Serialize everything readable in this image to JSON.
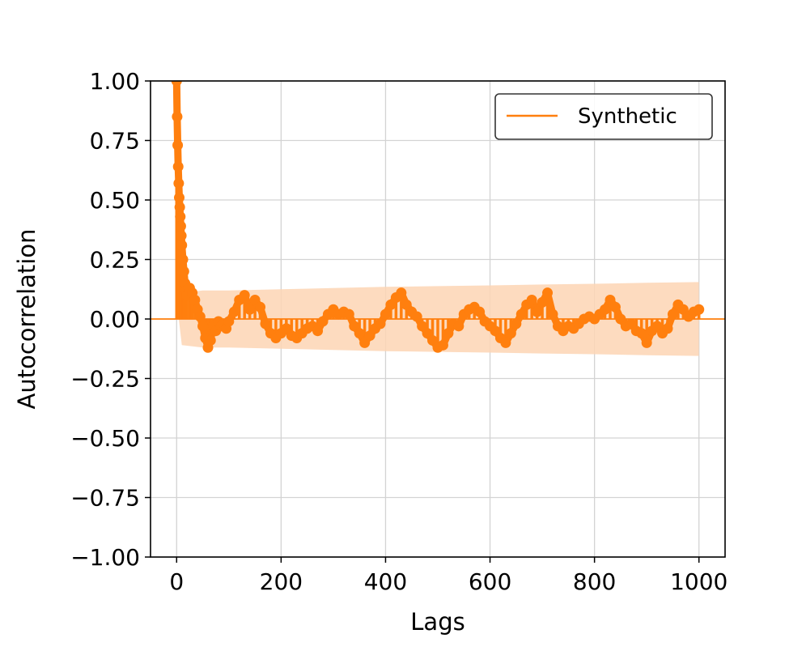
{
  "chart_data": {
    "type": "line",
    "title": "",
    "xlabel": "Lags",
    "ylabel": "Autocorrelation",
    "xlim": [
      -50,
      1050
    ],
    "ylim": [
      -1.0,
      1.0
    ],
    "x_ticks": [
      0,
      200,
      400,
      600,
      800,
      1000
    ],
    "x_tick_labels": [
      "0",
      "200",
      "400",
      "600",
      "800",
      "1000"
    ],
    "y_ticks": [
      1.0,
      0.75,
      0.5,
      0.25,
      0.0,
      -0.25,
      -0.5,
      -0.75,
      -1.0
    ],
    "y_tick_labels": [
      "1.00",
      "0.75",
      "0.50",
      "0.25",
      "0.00",
      "−0.25",
      "−0.50",
      "−0.75",
      "−1.00"
    ],
    "grid": true,
    "legend_position": "top-right",
    "series": [
      {
        "name": "Synthetic",
        "color": "#ff7f0e",
        "marker": "circle",
        "x": [
          0,
          1,
          2,
          3,
          4,
          5,
          6,
          7,
          8,
          9,
          10,
          12,
          14,
          16,
          18,
          20,
          25,
          30,
          35,
          40,
          45,
          50,
          55,
          60,
          65,
          70,
          75,
          80,
          85,
          90,
          95,
          100,
          110,
          120,
          130,
          140,
          150,
          160,
          170,
          180,
          190,
          200,
          210,
          220,
          230,
          240,
          250,
          260,
          270,
          280,
          290,
          300,
          310,
          320,
          330,
          340,
          350,
          360,
          370,
          380,
          390,
          400,
          410,
          420,
          430,
          440,
          450,
          460,
          470,
          480,
          490,
          500,
          510,
          520,
          530,
          540,
          550,
          560,
          570,
          580,
          590,
          600,
          610,
          620,
          630,
          640,
          650,
          660,
          670,
          680,
          690,
          700,
          710,
          720,
          730,
          740,
          750,
          760,
          770,
          780,
          790,
          800,
          810,
          820,
          830,
          840,
          850,
          860,
          870,
          880,
          890,
          900,
          910,
          920,
          930,
          940,
          950,
          960,
          970,
          980,
          990,
          1000
        ],
        "values": [
          1.0,
          0.85,
          0.73,
          0.64,
          0.57,
          0.51,
          0.47,
          0.43,
          0.39,
          0.35,
          0.31,
          0.25,
          0.2,
          0.15,
          0.12,
          0.1,
          0.13,
          0.11,
          0.08,
          0.04,
          0.01,
          -0.03,
          -0.08,
          -0.12,
          -0.09,
          -0.03,
          -0.05,
          -0.01,
          -0.03,
          -0.02,
          -0.04,
          -0.01,
          0.03,
          0.08,
          0.1,
          0.04,
          0.08,
          0.05,
          -0.02,
          -0.06,
          -0.08,
          -0.06,
          -0.04,
          -0.07,
          -0.08,
          -0.06,
          -0.04,
          -0.03,
          -0.05,
          -0.01,
          0.02,
          0.04,
          0.02,
          0.03,
          0.02,
          -0.03,
          -0.06,
          -0.1,
          -0.07,
          -0.04,
          -0.02,
          0.02,
          0.06,
          0.09,
          0.11,
          0.06,
          0.03,
          0.01,
          -0.03,
          -0.06,
          -0.09,
          -0.12,
          -0.11,
          -0.06,
          -0.02,
          -0.03,
          0.02,
          0.04,
          0.05,
          0.03,
          -0.01,
          -0.03,
          -0.05,
          -0.08,
          -0.1,
          -0.06,
          -0.02,
          0.02,
          0.06,
          0.08,
          0.03,
          0.07,
          0.11,
          0.02,
          -0.03,
          -0.05,
          -0.03,
          -0.04,
          -0.02,
          0.0,
          0.01,
          0.0,
          0.02,
          0.04,
          0.08,
          0.05,
          0.0,
          -0.03,
          -0.02,
          -0.05,
          -0.06,
          -0.1,
          -0.05,
          -0.03,
          -0.06,
          -0.04,
          0.02,
          0.06,
          0.04,
          0.01,
          0.03,
          0.04
        ]
      }
    ],
    "confidence_band": {
      "color": "#fdd5b4",
      "x": [
        4,
        10,
        50,
        100,
        200,
        300,
        400,
        500,
        600,
        700,
        800,
        900,
        1000
      ],
      "upper": [
        0.0,
        0.11,
        0.12,
        0.12,
        0.125,
        0.13,
        0.135,
        0.138,
        0.141,
        0.145,
        0.148,
        0.152,
        0.155
      ],
      "lower": [
        0.0,
        -0.11,
        -0.12,
        -0.12,
        -0.125,
        -0.13,
        -0.135,
        -0.138,
        -0.141,
        -0.145,
        -0.148,
        -0.152,
        -0.155
      ]
    }
  }
}
